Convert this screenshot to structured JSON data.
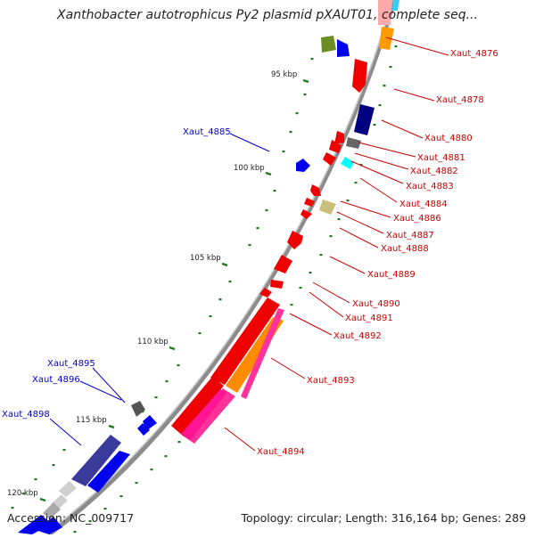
{
  "title": "Xanthobacter autotrophicus Py2 plasmid pXAUT01, complete seq...",
  "footer": {
    "accession": "Accession: NC_009717",
    "summary": "Topology: circular; Length: 316,164 bp; Genes: 289"
  },
  "colors": {
    "backbone": "#8c8c8c",
    "tick": "#1e7d1e",
    "red": "#ee0000",
    "blue_label": "#0000cc",
    "red_label": "#cc0000"
  },
  "tick_labels": [
    "95 kbp",
    "100 kbp",
    "105 kbp",
    "110 kbp",
    "115 kbp",
    "120 kbp"
  ],
  "gene_labels_left": [
    "Xaut_4885",
    "Xaut_4895",
    "Xaut_4896",
    "Xaut_4898"
  ],
  "gene_labels_right": [
    "Xaut_4876",
    "Xaut_4878",
    "Xaut_4880",
    "Xaut_4881",
    "Xaut_4882",
    "Xaut_4883",
    "Xaut_4884",
    "Xaut_4886",
    "Xaut_4887",
    "Xaut_4888",
    "Xaut_4889",
    "Xaut_4890",
    "Xaut_4891",
    "Xaut_4892",
    "Xaut_4893",
    "Xaut_4894"
  ]
}
